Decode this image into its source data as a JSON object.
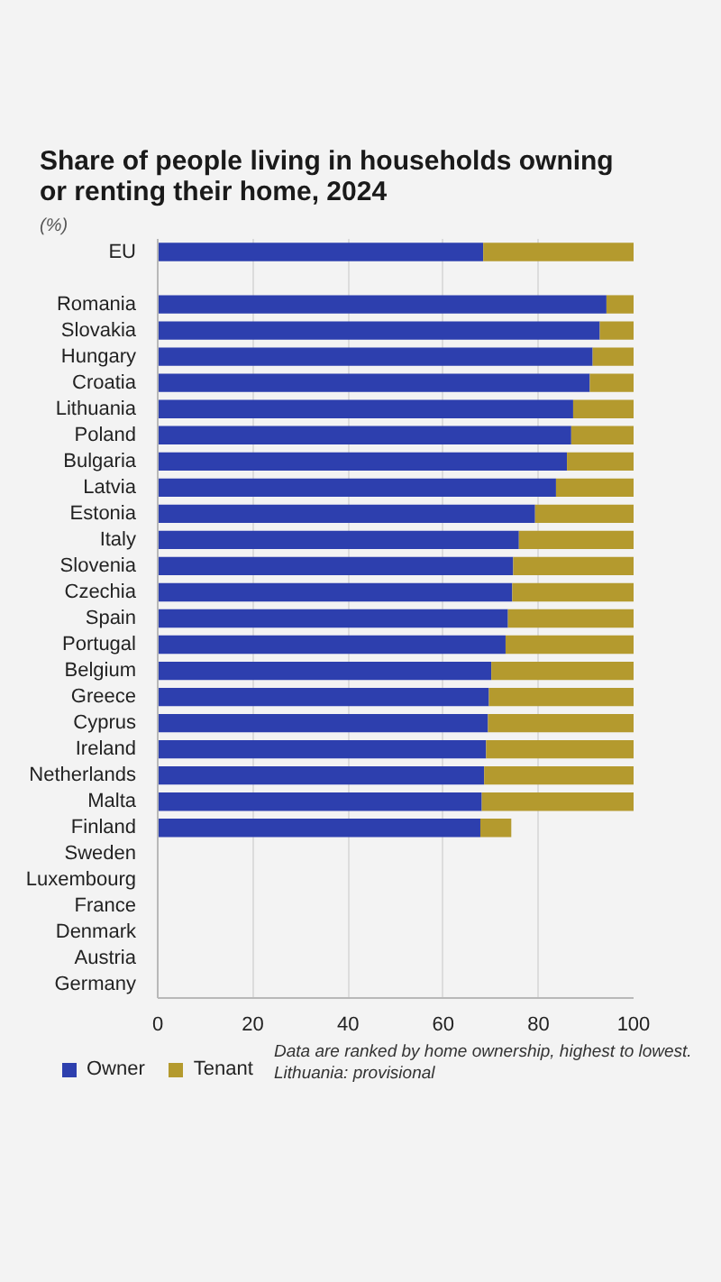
{
  "chart_data": {
    "type": "bar",
    "orientation": "horizontal",
    "stacked": true,
    "title": "Share of people living in households owning or renting their home, 2024",
    "subtitle": "(%)",
    "categories": [
      "EU",
      null,
      "Romania",
      "Slovakia",
      "Hungary",
      "Croatia",
      "Lithuania",
      "Poland",
      "Bulgaria",
      "Latvia",
      "Estonia",
      "Italy",
      "Slovenia",
      "Czechia",
      "Spain",
      "Portugal",
      "Belgium",
      "Greece",
      "Cyprus",
      "Ireland",
      "Netherlands",
      "Malta",
      "Finland",
      "Sweden",
      "Luxembourg",
      "France",
      "Denmark",
      "Austria",
      "Germany"
    ],
    "series": [
      {
        "name": "Owner",
        "color": "#2d3fae",
        "values": [
          68.4,
          null,
          94.3,
          92.9,
          91.4,
          90.8,
          87.3,
          86.9,
          86.0,
          83.7,
          79.3,
          75.9,
          74.7,
          74.5,
          73.6,
          73.1,
          70.1,
          69.6,
          69.4,
          69.0,
          68.6,
          68.1,
          67.8,
          null,
          null,
          null,
          null,
          null,
          null
        ]
      },
      {
        "name": "Tenant",
        "color": "#b49a2e",
        "values": [
          31.6,
          null,
          5.7,
          7.1,
          8.6,
          9.2,
          12.7,
          13.1,
          14.0,
          16.3,
          20.7,
          24.1,
          25.3,
          25.5,
          26.4,
          26.9,
          29.9,
          30.4,
          30.6,
          31.0,
          31.4,
          31.9,
          6.5,
          null,
          null,
          null,
          null,
          null,
          null
        ]
      }
    ],
    "xlim": [
      0,
      100
    ],
    "xticks": [
      0,
      20,
      40,
      60,
      80,
      100
    ],
    "grid": "x",
    "legend": "bottom left",
    "annotations": [
      "Data are ranked by home ownership, highest to lowest.",
      "Lithuania: provisional"
    ]
  }
}
